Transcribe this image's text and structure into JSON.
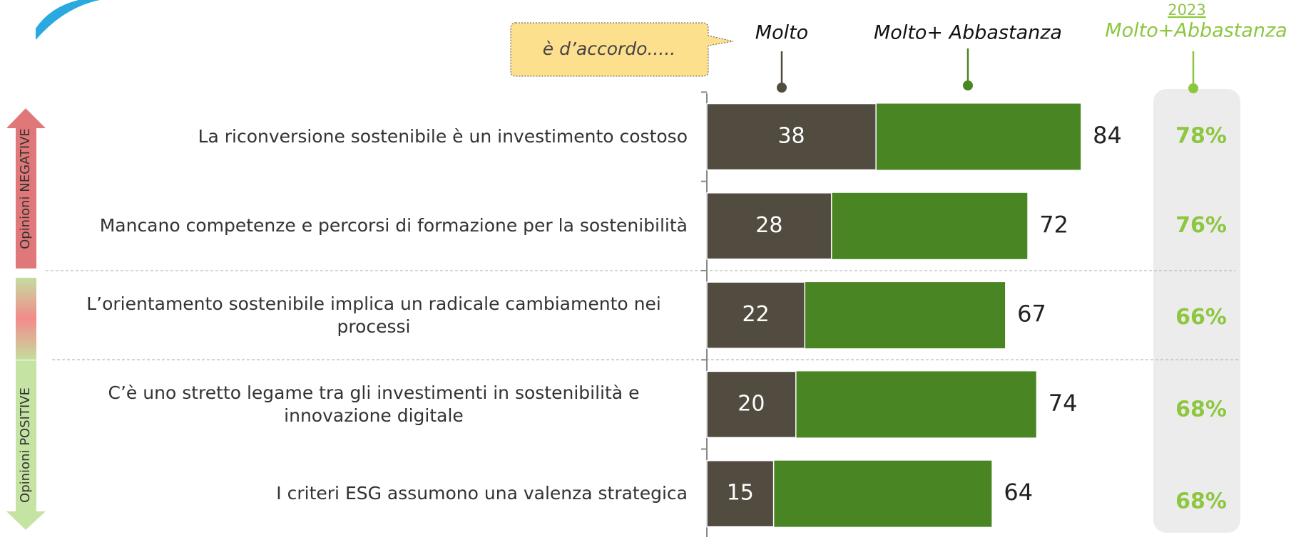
{
  "callout": "è d’accordo.....",
  "side_labels": [
    "Opinioni NEGATIVE",
    "Opinioni POSITIVE"
  ],
  "chart_data": {
    "type": "bar",
    "orientation": "horizontal",
    "categories": [
      "La riconversione sostenibile è un investimento costoso",
      "Mancano competenze e percorsi di formazione per la sostenibilità",
      "L’orientamento sostenibile implica un radicale cambiamento nei processi",
      "C’è uno stretto legame tra gli investimenti in sostenibilità e innovazione digitale",
      "I criteri ESG assumono una valenza strategica"
    ],
    "series": [
      {
        "name": "Molto",
        "color": "#524b3f",
        "values": [
          38,
          28,
          22,
          20,
          15
        ]
      },
      {
        "name": "Molto+ Abbastanza",
        "color": "#4a8523",
        "values": [
          84,
          72,
          67,
          74,
          64
        ]
      },
      {
        "name": "Molto+Abbastanza",
        "year": "2023",
        "color": "#8dc63f",
        "values": [
          78,
          76,
          66,
          68,
          68
        ],
        "value_labels": [
          "78%",
          "76%",
          "66%",
          "68%",
          "68%"
        ]
      }
    ]
  }
}
